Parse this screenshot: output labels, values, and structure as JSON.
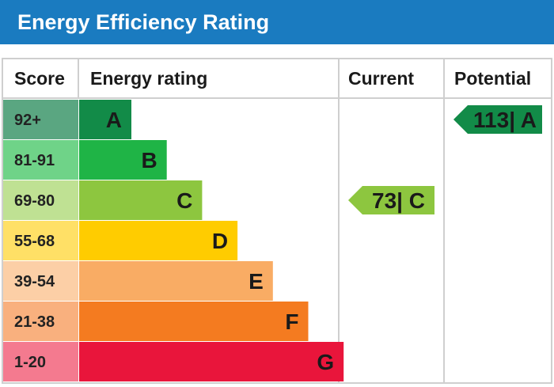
{
  "title": "Energy Efficiency Rating",
  "chart_data": {
    "type": "table",
    "title": "Energy Efficiency Rating",
    "columns": {
      "score": "Score",
      "rating": "Energy rating",
      "current": "Current",
      "potential": "Potential"
    },
    "bands": [
      {
        "range": "92+",
        "letter": "A",
        "band_color": "#128b48",
        "score_color": "#5aa681"
      },
      {
        "range": "81-91",
        "letter": "B",
        "band_color": "#1fb446",
        "score_color": "#6fd388"
      },
      {
        "range": "69-80",
        "letter": "C",
        "band_color": "#8dc63f",
        "score_color": "#bfe193"
      },
      {
        "range": "55-68",
        "letter": "D",
        "band_color": "#ffcc00",
        "score_color": "#ffe066"
      },
      {
        "range": "39-54",
        "letter": "E",
        "band_color": "#f9ac64",
        "score_color": "#fccfa6"
      },
      {
        "range": "21-38",
        "letter": "F",
        "band_color": "#f47b20",
        "score_color": "#f9b07e"
      },
      {
        "range": "1-20",
        "letter": "G",
        "band_color": "#e9153b",
        "score_color": "#f47a8f"
      }
    ],
    "current": {
      "value": 73,
      "band": "C",
      "label": "73| C",
      "color": "#8dc63f"
    },
    "potential": {
      "value": 113,
      "band": "A",
      "label": "113| A",
      "color": "#128b48"
    }
  }
}
